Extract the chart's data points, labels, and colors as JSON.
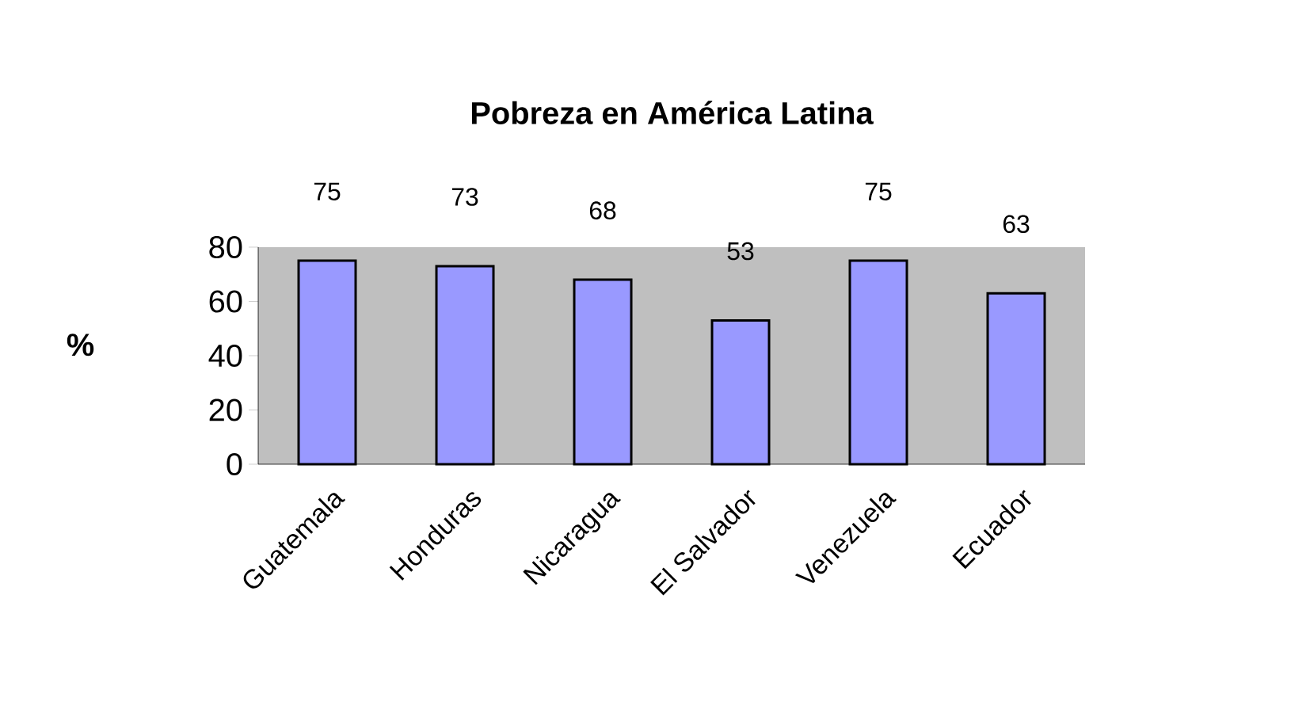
{
  "chart_data": {
    "type": "bar",
    "title": "Pobreza en América Latina",
    "ylabel": "%",
    "categories": [
      "Guatemala",
      "Honduras",
      "Nicaragua",
      "El Salvador",
      "Venezuela",
      "Ecuador"
    ],
    "values": [
      75,
      73,
      68,
      53,
      75,
      63
    ],
    "color": "#9999ff",
    "ylim": [
      0,
      80
    ],
    "yticks": [
      0,
      20,
      40,
      60,
      80
    ],
    "data_labels": true,
    "grid": false
  }
}
